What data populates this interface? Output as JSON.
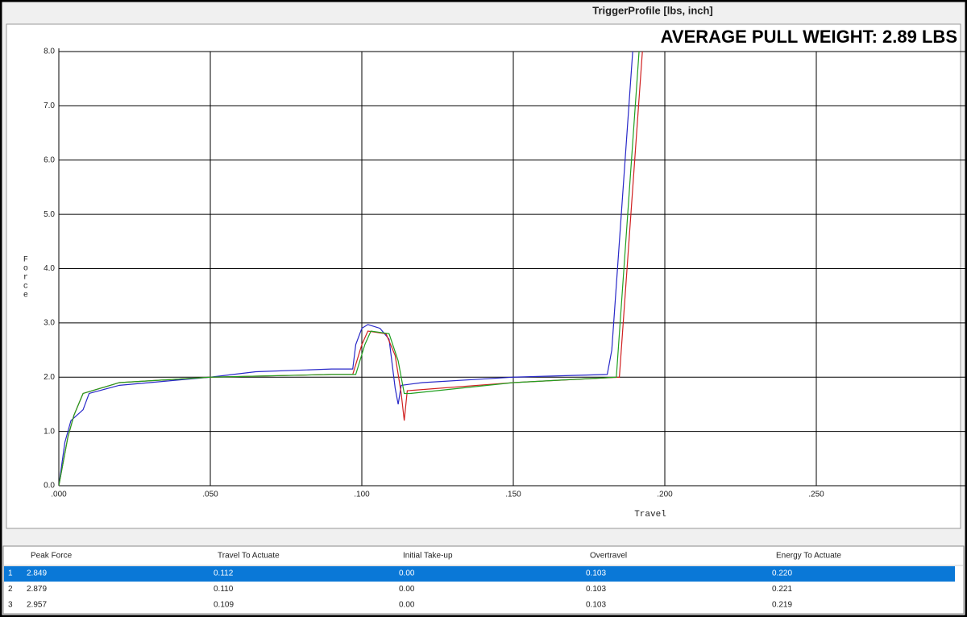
{
  "window": {
    "title": "TriggerProfile [lbs, inch]"
  },
  "banner": "AVERAGE PULL WEIGHT: 2.89 LBS",
  "chart_data": {
    "type": "line",
    "xlabel": "Travel",
    "ylabel": "Force",
    "xlim": [
      0,
      0.3
    ],
    "ylim": [
      0,
      8
    ],
    "xticks": [
      {
        "value": 0,
        "label": ".000"
      },
      {
        "value": 0.05,
        "label": ".050"
      },
      {
        "value": 0.1,
        "label": ".100"
      },
      {
        "value": 0.15,
        "label": ".150"
      },
      {
        "value": 0.2,
        "label": ".200"
      },
      {
        "value": 0.25,
        "label": ".250"
      }
    ],
    "yticks": [
      {
        "value": 0,
        "label": "0.0"
      },
      {
        "value": 1,
        "label": "1.0"
      },
      {
        "value": 2,
        "label": "2.0"
      },
      {
        "value": 3,
        "label": "3.0"
      },
      {
        "value": 4,
        "label": "4.0"
      },
      {
        "value": 5,
        "label": "5.0"
      },
      {
        "value": 6,
        "label": "6.0"
      },
      {
        "value": 7,
        "label": "7.0"
      },
      {
        "value": 8,
        "label": "8.0"
      }
    ],
    "grid": true,
    "series": [
      {
        "color": "#2828c8",
        "x": [
          0,
          0.002,
          0.004,
          0.008,
          0.01,
          0.02,
          0.05,
          0.065,
          0.09,
          0.097,
          0.098,
          0.1,
          0.102,
          0.106,
          0.109,
          0.111,
          0.112,
          0.113,
          0.12,
          0.15,
          0.181,
          0.1825,
          0.1894
        ],
        "values": [
          0,
          0.8,
          1.2,
          1.4,
          1.7,
          1.85,
          2.0,
          2.1,
          2.15,
          2.15,
          2.6,
          2.9,
          2.97,
          2.9,
          2.7,
          1.8,
          1.5,
          1.85,
          1.9,
          2.0,
          2.05,
          2.5,
          8.0
        ]
      },
      {
        "color": "#d02020",
        "x": [
          0,
          0.003,
          0.005,
          0.008,
          0.02,
          0.05,
          0.09,
          0.097,
          0.1,
          0.102,
          0.108,
          0.111,
          0.113,
          0.114,
          0.115,
          0.15,
          0.185,
          0.1926
        ],
        "values": [
          0,
          0.9,
          1.3,
          1.7,
          1.9,
          2.0,
          2.05,
          2.05,
          2.6,
          2.85,
          2.8,
          2.4,
          1.7,
          1.2,
          1.75,
          1.9,
          2.0,
          8.0
        ]
      },
      {
        "color": "#20a020",
        "x": [
          0,
          0.003,
          0.005,
          0.008,
          0.02,
          0.05,
          0.09,
          0.098,
          0.101,
          0.103,
          0.109,
          0.112,
          0.114,
          0.116,
          0.15,
          0.184,
          0.1915
        ],
        "values": [
          0,
          0.9,
          1.3,
          1.7,
          1.9,
          2.0,
          2.05,
          2.05,
          2.6,
          2.85,
          2.8,
          2.3,
          1.7,
          1.7,
          1.9,
          2.0,
          8.0
        ]
      }
    ]
  },
  "table": {
    "columns": [
      "Peak Force",
      "Travel To Actuate",
      "Initial Take-up",
      "Overtravel",
      "Energy To Actuate"
    ],
    "rows": [
      [
        "1",
        "2.849",
        "0.112",
        "0.00",
        "0.103",
        "0.220"
      ],
      [
        "2",
        "2.879",
        "0.110",
        "0.00",
        "0.103",
        "0.221"
      ],
      [
        "3",
        "2.957",
        "0.109",
        "0.00",
        "0.103",
        "0.219"
      ]
    ]
  }
}
